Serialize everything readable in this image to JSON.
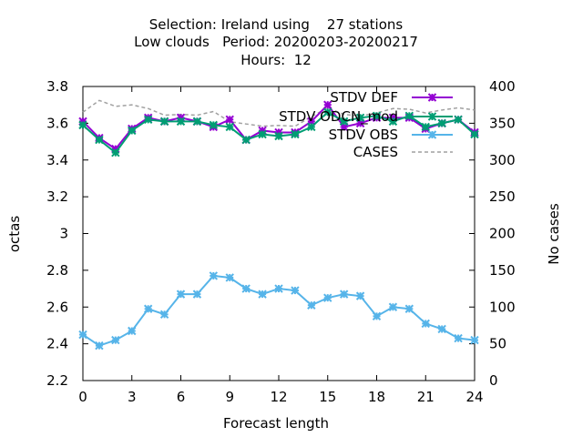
{
  "chart_data": {
    "type": "line",
    "title_lines": [
      "Selection: Ireland using    27 stations",
      "Low clouds   Period: 20200203-20200217",
      "Hours:  12"
    ],
    "xlabel": "Forecast length",
    "ylabel": "octas",
    "y2label": "No cases",
    "x_ticks": [
      0,
      3,
      6,
      9,
      12,
      15,
      18,
      21,
      24
    ],
    "y_ticks": [
      2.2,
      2.4,
      2.6,
      2.8,
      3,
      3.2,
      3.4,
      3.6,
      3.8
    ],
    "y2_ticks": [
      0,
      50,
      100,
      150,
      200,
      250,
      300,
      350,
      400
    ],
    "xlim": [
      0,
      24
    ],
    "ylim": [
      2.2,
      3.8
    ],
    "y2lim": [
      0,
      400
    ],
    "legend_position": "top-right",
    "x": [
      0,
      1,
      2,
      3,
      4,
      5,
      6,
      7,
      8,
      9,
      10,
      11,
      12,
      13,
      14,
      15,
      16,
      17,
      18,
      19,
      20,
      21,
      22,
      23,
      24
    ],
    "series": [
      {
        "name": "STDV DEF",
        "color": "#9400d3",
        "axis": "y1",
        "marker": "star",
        "values": [
          3.61,
          3.52,
          3.46,
          3.57,
          3.63,
          3.61,
          3.63,
          3.61,
          3.58,
          3.62,
          3.51,
          3.56,
          3.55,
          3.55,
          3.61,
          3.7,
          3.58,
          3.6,
          3.63,
          3.63,
          3.63,
          3.57,
          3.6,
          3.62,
          3.55
        ]
      },
      {
        "name": "STDV ODCN_mod",
        "color": "#009e73",
        "axis": "y1",
        "marker": "star",
        "values": [
          3.59,
          3.51,
          3.44,
          3.56,
          3.62,
          3.61,
          3.61,
          3.61,
          3.59,
          3.58,
          3.51,
          3.54,
          3.53,
          3.54,
          3.58,
          3.66,
          3.61,
          3.63,
          3.64,
          3.61,
          3.64,
          3.58,
          3.6,
          3.62,
          3.54
        ]
      },
      {
        "name": "STDV OBS",
        "color": "#56b4e9",
        "axis": "y1",
        "marker": "star",
        "values": [
          2.45,
          2.39,
          2.42,
          2.47,
          2.59,
          2.56,
          2.67,
          2.67,
          2.77,
          2.76,
          2.7,
          2.67,
          2.7,
          2.69,
          2.61,
          2.65,
          2.67,
          2.66,
          2.55,
          2.6,
          2.59,
          2.51,
          2.48,
          2.43,
          2.42
        ]
      },
      {
        "name": "CASES",
        "color": "#a0a0a0",
        "axis": "y2",
        "dashed": true,
        "values": [
          365,
          381,
          373,
          375,
          370,
          361,
          362,
          361,
          366,
          352,
          349,
          346,
          347,
          346,
          359,
          371,
          362,
          360,
          364,
          370,
          369,
          364,
          368,
          371,
          368
        ]
      }
    ]
  }
}
